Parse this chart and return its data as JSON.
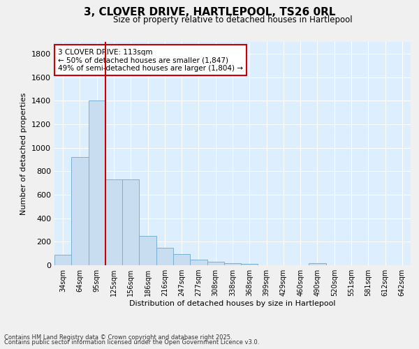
{
  "title_line1": "3, CLOVER DRIVE, HARTLEPOOL, TS26 0RL",
  "title_line2": "Size of property relative to detached houses in Hartlepool",
  "xlabel": "Distribution of detached houses by size in Hartlepool",
  "ylabel": "Number of detached properties",
  "bar_color": "#c8ddf0",
  "bar_edge_color": "#7aafd4",
  "categories": [
    "34sqm",
    "64sqm",
    "95sqm",
    "125sqm",
    "156sqm",
    "186sqm",
    "216sqm",
    "247sqm",
    "277sqm",
    "308sqm",
    "338sqm",
    "368sqm",
    "399sqm",
    "429sqm",
    "460sqm",
    "490sqm",
    "520sqm",
    "551sqm",
    "581sqm",
    "612sqm",
    "642sqm"
  ],
  "values": [
    88,
    920,
    1400,
    730,
    730,
    248,
    148,
    95,
    50,
    30,
    20,
    12,
    0,
    0,
    0,
    15,
    0,
    0,
    0,
    0,
    0
  ],
  "vline_color": "#cc0000",
  "ylim": [
    0,
    1900
  ],
  "yticks": [
    0,
    200,
    400,
    600,
    800,
    1000,
    1200,
    1400,
    1600,
    1800
  ],
  "annotation_text": "3 CLOVER DRIVE: 113sqm\n← 50% of detached houses are smaller (1,847)\n49% of semi-detached houses are larger (1,804) →",
  "annotation_box_color": "#ffffff",
  "annotation_box_edge": "#cc0000",
  "bg_color": "#ddeeff",
  "grid_color": "#ffffff",
  "footer_line1": "Contains HM Land Registry data © Crown copyright and database right 2025.",
  "footer_line2": "Contains public sector information licensed under the Open Government Licence v3.0."
}
